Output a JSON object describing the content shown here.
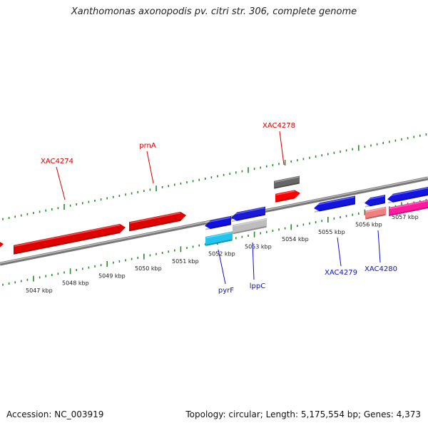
{
  "title": "Xanthomonas axonopodis pv. citri str. 306, complete genome",
  "footer": {
    "accession": "Accession: NC_003919",
    "stats": "Topology: circular; Length: 5,175,554 bp; Genes: 4,373"
  },
  "colors": {
    "backbone": "#8a8a8a",
    "tick": "#2a8a2a",
    "forward_label": "#d40000",
    "reverse_label": "#1010c8"
  },
  "scale": {
    "unit": "kbp",
    "labels": [
      "5047 kbp",
      "5048 kbp",
      "5049 kbp",
      "5050 kbp",
      "5051 kbp",
      "5052 kbp",
      "5053 kbp",
      "5054 kbp",
      "5055 kbp",
      "5056 kbp",
      "5057 kbp"
    ]
  },
  "genes": [
    {
      "strand": "forward",
      "label": "",
      "color": "#e00000"
    },
    {
      "strand": "forward",
      "label": "XAC4274",
      "color": "#e00000"
    },
    {
      "strand": "forward",
      "label": "prnA",
      "color": "#e00000"
    },
    {
      "strand": "forward",
      "label": "XAC4278",
      "color": "#666666"
    },
    {
      "strand": "forward",
      "label": "",
      "color": "#ff0000"
    },
    {
      "strand": "reverse",
      "label": "pyrF",
      "color": "#1010e0"
    },
    {
      "strand": "reverse",
      "label": "",
      "color": "#1a1ad8"
    },
    {
      "strand": "reverse",
      "label": "",
      "color": "#22c4ee"
    },
    {
      "strand": "reverse",
      "label": "lppC",
      "color": "#bdbdbd"
    },
    {
      "strand": "reverse",
      "label": "XAC4279",
      "color": "#1414e0"
    },
    {
      "strand": "reverse",
      "label": "",
      "color": "#1414e0"
    },
    {
      "strand": "reverse",
      "label": "",
      "color": "#1414e0"
    },
    {
      "strand": "reverse",
      "label": "XAC4280",
      "color": "#f08080"
    },
    {
      "strand": "reverse",
      "label": "",
      "color": "#ff1aa0"
    }
  ]
}
